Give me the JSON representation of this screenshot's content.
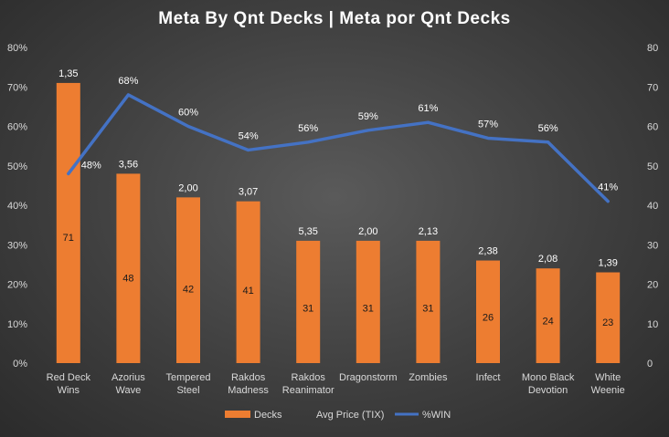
{
  "chart_data": {
    "type": "bar",
    "title": "Meta By Qnt Decks | Meta por Qnt Decks",
    "categories": [
      [
        "Red Deck",
        "Wins"
      ],
      [
        "Azorius",
        "Wave"
      ],
      [
        "Tempered",
        "Steel"
      ],
      [
        "Rakdos",
        "Madness"
      ],
      [
        "Rakdos",
        "Reanimator"
      ],
      [
        "Dragonstorm"
      ],
      [
        "Zombies"
      ],
      [
        "Infect"
      ],
      [
        "Mono Black",
        "Devotion"
      ],
      [
        "White",
        "Weenie"
      ]
    ],
    "series": [
      {
        "name": "Decks",
        "type": "bar",
        "axis": "right",
        "values": [
          71,
          48,
          42,
          41,
          31,
          31,
          31,
          26,
          24,
          23
        ],
        "color": "#ed7d31"
      },
      {
        "name": "Avg Price (TIX)",
        "type": "labels",
        "labels": [
          "1,35",
          "3,56",
          "2,00",
          "3,07",
          "5,35",
          "2,00",
          "2,13",
          "2,38",
          "2,08",
          "1,39"
        ]
      },
      {
        "name": "%WIN",
        "type": "line",
        "axis": "left",
        "values": [
          48,
          68,
          60,
          54,
          56,
          59,
          61,
          57,
          56,
          41
        ],
        "labels": [
          "48%",
          "68%",
          "60%",
          "54%",
          "56%",
          "59%",
          "61%",
          "57%",
          "56%",
          "41%"
        ],
        "color": "#4472c4"
      }
    ],
    "y_left": {
      "ticks": [
        "0%",
        "10%",
        "20%",
        "30%",
        "40%",
        "50%",
        "60%",
        "70%",
        "80%"
      ],
      "range": [
        0,
        80
      ]
    },
    "y_right": {
      "ticks": [
        "0",
        "10",
        "20",
        "30",
        "40",
        "50",
        "60",
        "70",
        "80"
      ],
      "range": [
        0,
        80
      ]
    },
    "grid": false,
    "legend_position": "bottom"
  }
}
